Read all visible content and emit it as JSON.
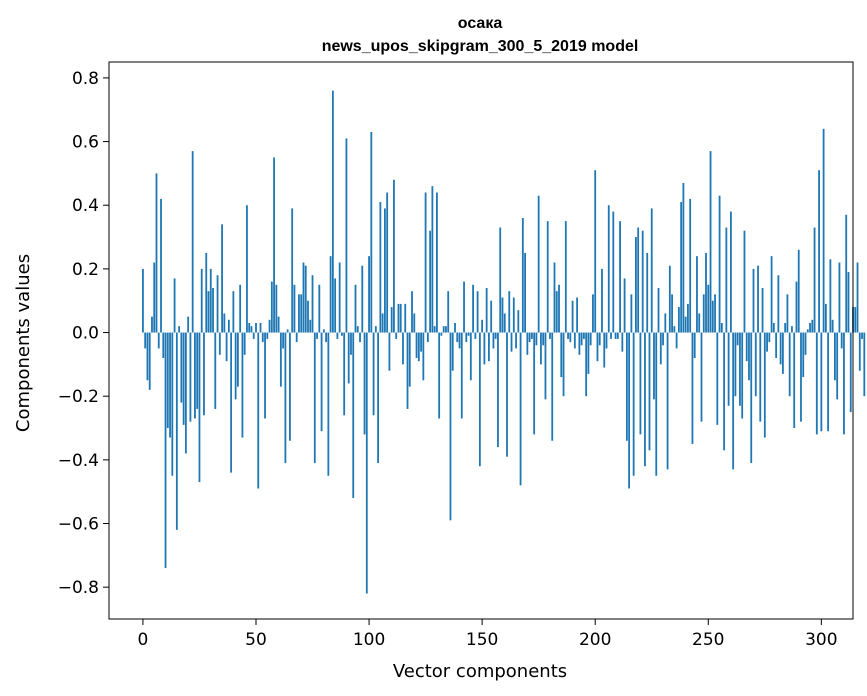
{
  "chart_data": {
    "type": "bar",
    "title": "осака",
    "subtitle": "news_upos_skipgram_300_5_2019 model",
    "xlabel": "Vector components",
    "ylabel": "Components values",
    "xlim": [
      -15,
      314
    ],
    "ylim": [
      -0.9,
      0.85
    ],
    "xticks": [
      0,
      50,
      100,
      150,
      200,
      250,
      300
    ],
    "yticks": [
      -0.8,
      -0.6,
      -0.4,
      -0.2,
      0.0,
      0.2,
      0.4,
      0.6,
      0.8
    ],
    "xtick_labels": [
      "0",
      "50",
      "100",
      "150",
      "200",
      "250",
      "300"
    ],
    "ytick_labels": [
      "−0.8",
      "−0.6",
      "−0.4",
      "−0.2",
      "0.0",
      "0.2",
      "0.4",
      "0.6",
      "0.8"
    ],
    "grid": false,
    "bar_color": "#1f77b4",
    "values": [
      0.2,
      -0.05,
      -0.15,
      -0.18,
      0.05,
      0.22,
      0.5,
      -0.05,
      0.42,
      -0.08,
      -0.74,
      -0.3,
      -0.33,
      -0.45,
      0.17,
      -0.62,
      0.02,
      -0.22,
      -0.29,
      -0.38,
      0.05,
      -0.28,
      0.57,
      -0.27,
      -0.24,
      -0.47,
      0.2,
      -0.26,
      0.25,
      0.13,
      0.2,
      0.14,
      -0.24,
      0.18,
      -0.07,
      0.34,
      0.06,
      -0.09,
      0.04,
      -0.44,
      0.13,
      -0.21,
      -0.17,
      0.15,
      -0.33,
      -0.07,
      0.4,
      0.03,
      0.02,
      -0.02,
      0.03,
      -0.49,
      0.03,
      -0.03,
      -0.27,
      -0.02,
      0.04,
      0.16,
      0.55,
      0.15,
      0.05,
      -0.17,
      -0.05,
      -0.41,
      0.01,
      -0.34,
      0.39,
      0.15,
      -0.03,
      0.12,
      0.12,
      0.22,
      0.21,
      0.1,
      0.04,
      0.18,
      -0.41,
      -0.02,
      0.15,
      -0.31,
      0.01,
      -0.03,
      -0.45,
      0.24,
      0.76,
      0.17,
      -0.02,
      0.22,
      -0.01,
      -0.26,
      0.61,
      -0.16,
      -0.07,
      -0.52,
      0.15,
      0.02,
      -0.03,
      0.21,
      -0.32,
      -0.82,
      0.24,
      0.63,
      -0.26,
      0.02,
      -0.41,
      0.41,
      0.06,
      0.39,
      0.44,
      -0.12,
      0.08,
      0.48,
      -0.02,
      0.09,
      0.09,
      -0.1,
      0.09,
      -0.24,
      -0.17,
      0.13,
      0.06,
      -0.08,
      -0.09,
      -0.06,
      -0.15,
      0.44,
      -0.03,
      0.32,
      0.46,
      0.02,
      0.44,
      -0.27,
      -0.01,
      0.02,
      0.02,
      0.13,
      -0.59,
      -0.12,
      0.03,
      -0.03,
      -0.05,
      -0.27,
      0.16,
      -0.03,
      -0.01,
      -0.15,
      0.15,
      -0.02,
      0.13,
      -0.42,
      0.04,
      -0.1,
      0.14,
      -0.09,
      0.1,
      -0.05,
      -0.02,
      -0.36,
      0.33,
      0.11,
      0.06,
      -0.39,
      0.13,
      -0.06,
      0.11,
      -0.05,
      0.07,
      -0.48,
      0.36,
      0.25,
      -0.07,
      -0.03,
      -0.02,
      -0.32,
      -0.04,
      0.43,
      -0.1,
      -0.04,
      -0.21,
      0.35,
      -0.02,
      -0.34,
      0.22,
      0.13,
      0.15,
      -0.14,
      -0.2,
      0.35,
      -0.02,
      -0.03,
      0.1,
      -0.05,
      0.11,
      -0.07,
      -0.04,
      -0.02,
      -0.2,
      -0.13,
      -0.04,
      0.12,
      0.51,
      -0.09,
      -0.04,
      0.2,
      -0.11,
      -0.05,
      0.4,
      -0.02,
      0.38,
      -0.02,
      -0.02,
      0.35,
      -0.06,
      0.17,
      -0.34,
      -0.49,
      0.12,
      -0.45,
      0.3,
      0.33,
      -0.32,
      0.32,
      -0.42,
      0.25,
      -0.37,
      0.39,
      -0.21,
      -0.45,
      0.14,
      -0.1,
      -0.04,
      0.06,
      -0.43,
      0.21,
      0.12,
      0.02,
      -0.05,
      0.08,
      0.41,
      0.47,
      0.05,
      0.09,
      0.42,
      -0.35,
      -0.08,
      0.24,
      0.06,
      -0.28,
      0.12,
      0.25,
      0.15,
      0.57,
      0.1,
      0.12,
      -0.29,
      0.43,
      0.03,
      -0.37,
      0.33,
      -0.23,
      0.38,
      -0.43,
      -0.2,
      -0.04,
      -0.23,
      -0.27,
      0.32,
      -0.09,
      -0.15,
      -0.41,
      0.2,
      -0.2,
      0.21,
      -0.28,
      0.14,
      -0.33,
      -0.06,
      -0.03,
      0.24,
      0.03,
      -0.08,
      0.18,
      -0.1,
      -0.13,
      0.03,
      0.12,
      -0.2,
      0.02,
      -0.3,
      0.16,
      0.26,
      -0.28,
      -0.14,
      -0.07,
      0.01,
      0.03,
      0.04,
      0.33,
      -0.32,
      0.51,
      -0.31,
      0.64,
      0.09,
      -0.31,
      0.23,
      0.04,
      -0.15,
      -0.21,
      0.22,
      -0.05,
      -0.32,
      0.37,
      0.19,
      -0.25,
      0.08,
      0.08,
      0.22,
      -0.12,
      -0.02,
      -0.2
    ]
  }
}
